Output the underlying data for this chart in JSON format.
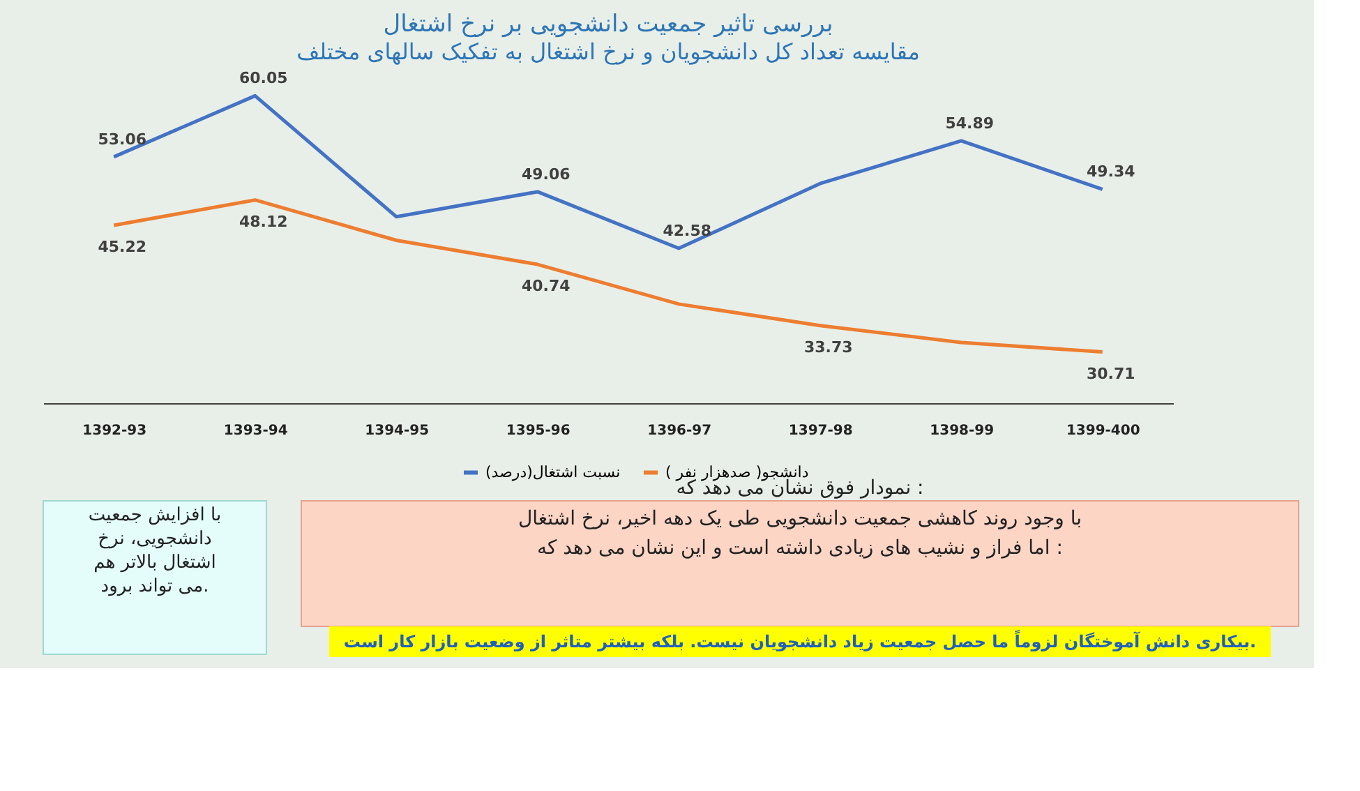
{
  "chart_data": {
    "type": "line",
    "title": "بررسی تاثیر جمعیت دانشجویی بر نرخ اشتغال",
    "subtitle": "مقایسه تعداد کل دانشجویان و نرخ اشتغال به تفکیک سالهای مختلف",
    "categories": [
      "1392-93",
      "1393-94",
      "1394-95",
      "1395-96",
      "1396-97",
      "1397-98",
      "1398-99",
      "1399-400"
    ],
    "series": [
      {
        "name": "نسبت اشتغال(درصد)",
        "color": "#4472c4",
        "values": [
          53.06,
          60.05,
          46.2,
          49.06,
          42.58,
          50.0,
          54.89,
          49.34
        ],
        "value_labels": [
          "53.06",
          "60.05",
          null,
          "49.06",
          "42.58",
          null,
          "54.89",
          "49.34"
        ]
      },
      {
        "name": "دانشجو( صدهزار نفر )",
        "color": "#ed7d31",
        "values": [
          45.22,
          48.12,
          43.5,
          40.74,
          36.2,
          33.73,
          31.8,
          30.71
        ],
        "value_labels": [
          "45.22",
          "48.12",
          null,
          "40.74",
          null,
          "33.73",
          null,
          "30.71"
        ]
      }
    ],
    "annotations": [
      "با افزایش جمعیت دانشجویی، نرخ اشتغال بالاتر هم می تواند برود.",
      "نمودار فوق نشان می دهد که :",
      "با وجود روند کاهشی جمعیت دانشجویی طی یک دهه اخیر، نرخ اشتغال اما فراز و نشیب های زیادی داشته است و این نشان می دهد که :",
      "بیکاری دانش آموختگان لزوماً ما حصل جمعیت زیاد دانشجویان نیست. بلکه بیشتر متاثر از وضعیت بازار کار است."
    ],
    "legend": "bottom",
    "tick_labels": "x",
    "grid": false,
    "line_style": "solid",
    "marker": "none"
  }
}
